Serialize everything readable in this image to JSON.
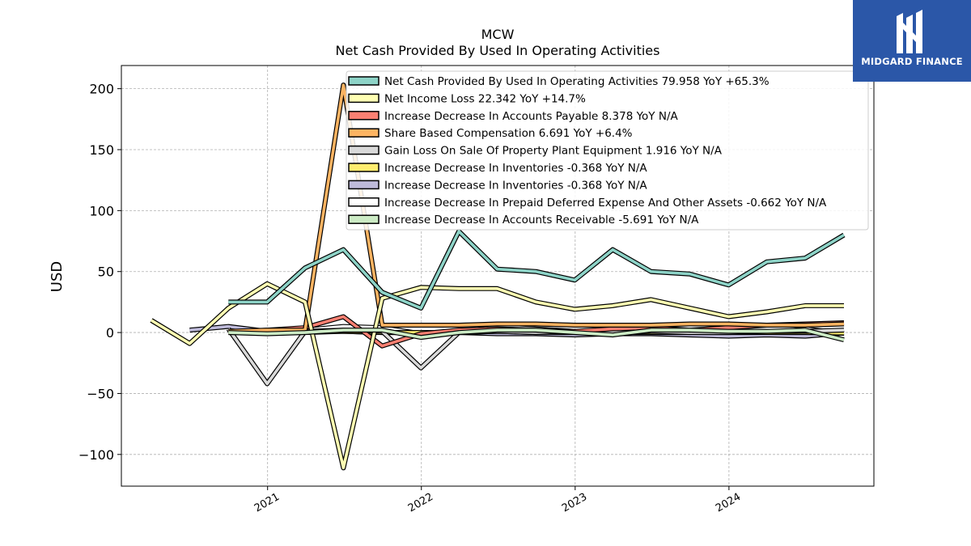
{
  "brand": {
    "name": "MIDGARD FINANCE",
    "logo_icon": "midgard-m-icon",
    "color": "#2b57a8"
  },
  "chart_data": {
    "type": "line",
    "title": "MCW",
    "subtitle": "Net Cash Provided By Used In Operating Activities",
    "xlabel": "",
    "ylabel": "USD",
    "xlim": [
      "2020-01-20",
      "2024-12-10"
    ],
    "ylim": [
      -126,
      219
    ],
    "xticks": [
      "2021",
      "2022",
      "2023",
      "2024"
    ],
    "yticks": [
      -100,
      -50,
      0,
      50,
      100,
      150,
      200
    ],
    "grid": true,
    "legend_position": "top-right",
    "series": [
      {
        "name": "Net Cash Provided By Used In Operating Activities",
        "legend": "Net Cash Provided By Used In Operating Activities  79.958 YoY +65.3%",
        "color": "#8dd3c7",
        "points": [
          [
            "2020-09-30",
            25
          ],
          [
            "2020-12-31",
            25
          ],
          [
            "2021-03-31",
            53
          ],
          [
            "2021-06-30",
            68
          ],
          [
            "2021-09-30",
            33
          ],
          [
            "2021-12-31",
            20
          ],
          [
            "2022-03-31",
            83
          ],
          [
            "2022-06-30",
            52
          ],
          [
            "2022-09-30",
            50
          ],
          [
            "2022-12-31",
            43
          ],
          [
            "2023-03-31",
            68
          ],
          [
            "2023-06-30",
            50
          ],
          [
            "2023-09-30",
            48
          ],
          [
            "2023-12-31",
            39
          ],
          [
            "2024-03-31",
            58
          ],
          [
            "2024-06-30",
            61
          ],
          [
            "2024-09-30",
            80
          ]
        ]
      },
      {
        "name": "Net Income Loss",
        "legend": "Net Income Loss  22.342 YoY +14.7%",
        "color": "#ffffb3",
        "points": [
          [
            "2020-03-31",
            10
          ],
          [
            "2020-06-30",
            -9
          ],
          [
            "2020-09-30",
            20
          ],
          [
            "2020-12-31",
            40
          ],
          [
            "2021-03-31",
            25
          ],
          [
            "2021-06-30",
            -111
          ],
          [
            "2021-09-30",
            28
          ],
          [
            "2021-12-31",
            37
          ],
          [
            "2022-03-31",
            36
          ],
          [
            "2022-06-30",
            36
          ],
          [
            "2022-09-30",
            25
          ],
          [
            "2022-12-31",
            19
          ],
          [
            "2023-03-31",
            22
          ],
          [
            "2023-06-30",
            27
          ],
          [
            "2023-09-30",
            20
          ],
          [
            "2023-12-31",
            13
          ],
          [
            "2024-03-31",
            17
          ],
          [
            "2024-06-30",
            22
          ],
          [
            "2024-09-30",
            22
          ]
        ]
      },
      {
        "name": "Increase Decrease In Accounts Payable",
        "legend": "Increase Decrease In Accounts Payable  8.378 YoY N/A",
        "color": "#fb8072",
        "points": [
          [
            "2020-09-30",
            0
          ],
          [
            "2020-12-31",
            2
          ],
          [
            "2021-03-31",
            4
          ],
          [
            "2021-06-30",
            13
          ],
          [
            "2021-09-30",
            -11
          ],
          [
            "2021-12-31",
            -1
          ],
          [
            "2022-03-31",
            2
          ],
          [
            "2022-06-30",
            3
          ],
          [
            "2022-09-30",
            2
          ],
          [
            "2022-12-31",
            1
          ],
          [
            "2023-03-31",
            3
          ],
          [
            "2023-06-30",
            4
          ],
          [
            "2023-09-30",
            2
          ],
          [
            "2023-12-31",
            4
          ],
          [
            "2024-03-31",
            6
          ],
          [
            "2024-06-30",
            7
          ],
          [
            "2024-09-30",
            8
          ]
        ]
      },
      {
        "name": "Share Based Compensation",
        "legend": "Share Based Compensation  6.691 YoY +6.4%",
        "color": "#fdb462",
        "points": [
          [
            "2020-09-30",
            1
          ],
          [
            "2020-12-31",
            2
          ],
          [
            "2021-03-31",
            2
          ],
          [
            "2021-06-30",
            203
          ],
          [
            "2021-09-30",
            6
          ],
          [
            "2021-12-31",
            6
          ],
          [
            "2022-03-31",
            6
          ],
          [
            "2022-06-30",
            7
          ],
          [
            "2022-09-30",
            7
          ],
          [
            "2022-12-31",
            6
          ],
          [
            "2023-03-31",
            6
          ],
          [
            "2023-06-30",
            6
          ],
          [
            "2023-09-30",
            7
          ],
          [
            "2023-12-31",
            7
          ],
          [
            "2024-03-31",
            6
          ],
          [
            "2024-06-30",
            6
          ],
          [
            "2024-09-30",
            7
          ]
        ]
      },
      {
        "name": "Gain Loss On Sale Of Property Plant Equipment",
        "legend": "Gain Loss On Sale Of Property Plant Equipment  1.916 YoY N/A",
        "color": "#d9d9d9",
        "points": [
          [
            "2020-09-30",
            3
          ],
          [
            "2020-12-31",
            -42
          ],
          [
            "2021-03-31",
            1
          ],
          [
            "2021-06-30",
            2
          ],
          [
            "2021-09-30",
            1
          ],
          [
            "2021-12-31",
            -29
          ],
          [
            "2022-03-31",
            0
          ],
          [
            "2022-06-30",
            1
          ],
          [
            "2022-09-30",
            0
          ],
          [
            "2022-12-31",
            1
          ],
          [
            "2023-03-31",
            0
          ],
          [
            "2023-06-30",
            1
          ],
          [
            "2023-09-30",
            0
          ],
          [
            "2023-12-31",
            0
          ],
          [
            "2024-03-31",
            1
          ],
          [
            "2024-06-30",
            1
          ],
          [
            "2024-09-30",
            2
          ]
        ]
      },
      {
        "name": "Increase Decrease In Inventories",
        "legend": "Increase Decrease In Inventories  -0.368 YoY N/A",
        "color": "#ffed6f",
        "points": [
          [
            "2020-09-30",
            1
          ],
          [
            "2020-12-31",
            0
          ],
          [
            "2021-03-31",
            0
          ],
          [
            "2021-06-30",
            1
          ],
          [
            "2021-09-30",
            0
          ],
          [
            "2021-12-31",
            0
          ],
          [
            "2022-03-31",
            0
          ],
          [
            "2022-06-30",
            1
          ],
          [
            "2022-09-30",
            0
          ],
          [
            "2022-12-31",
            0
          ],
          [
            "2023-03-31",
            0
          ],
          [
            "2023-06-30",
            0
          ],
          [
            "2023-09-30",
            0
          ],
          [
            "2023-12-31",
            0
          ],
          [
            "2024-03-31",
            0
          ],
          [
            "2024-06-30",
            0
          ],
          [
            "2024-09-30",
            -0.4
          ]
        ]
      },
      {
        "name": "Increase Decrease In Inventories",
        "legend": "Increase Decrease In Inventories  -0.368 YoY N/A",
        "color": "#bebada",
        "points": [
          [
            "2020-06-30",
            2
          ],
          [
            "2020-09-30",
            5
          ],
          [
            "2020-12-31",
            1
          ],
          [
            "2021-03-31",
            1
          ],
          [
            "2021-06-30",
            1
          ],
          [
            "2021-09-30",
            0
          ],
          [
            "2021-12-31",
            0
          ],
          [
            "2022-03-31",
            0
          ],
          [
            "2022-06-30",
            -1
          ],
          [
            "2022-09-30",
            -1
          ],
          [
            "2022-12-31",
            -2
          ],
          [
            "2023-03-31",
            -1
          ],
          [
            "2023-06-30",
            -1
          ],
          [
            "2023-09-30",
            -2
          ],
          [
            "2023-12-31",
            -3
          ],
          [
            "2024-03-31",
            -2
          ],
          [
            "2024-06-30",
            -3
          ],
          [
            "2024-09-30",
            -0.4
          ]
        ]
      },
      {
        "name": "Increase Decrease In Prepaid Deferred Expense And Other Assets",
        "legend": "Increase Decrease In Prepaid Deferred Expense And Other Assets  -0.662 YoY N/A",
        "color": "#ffffff",
        "points": [
          [
            "2020-09-30",
            1
          ],
          [
            "2020-12-31",
            0
          ],
          [
            "2021-03-31",
            2
          ],
          [
            "2021-06-30",
            5
          ],
          [
            "2021-09-30",
            4
          ],
          [
            "2021-12-31",
            -1
          ],
          [
            "2022-03-31",
            0
          ],
          [
            "2022-06-30",
            5
          ],
          [
            "2022-09-30",
            3
          ],
          [
            "2022-12-31",
            1
          ],
          [
            "2023-03-31",
            -1
          ],
          [
            "2023-06-30",
            4
          ],
          [
            "2023-09-30",
            1
          ],
          [
            "2023-12-31",
            -1
          ],
          [
            "2024-03-31",
            -1
          ],
          [
            "2024-06-30",
            3
          ],
          [
            "2024-09-30",
            -0.7
          ]
        ]
      },
      {
        "name": "Increase Decrease In Accounts Receivable",
        "legend": "Increase Decrease In Accounts Receivable  -5.691 YoY N/A",
        "color": "#ccebc5",
        "points": [
          [
            "2020-09-30",
            0
          ],
          [
            "2020-12-31",
            -1
          ],
          [
            "2021-03-31",
            0
          ],
          [
            "2021-06-30",
            2
          ],
          [
            "2021-09-30",
            2
          ],
          [
            "2021-12-31",
            -4
          ],
          [
            "2022-03-31",
            0
          ],
          [
            "2022-06-30",
            2
          ],
          [
            "2022-09-30",
            2
          ],
          [
            "2022-12-31",
            0
          ],
          [
            "2023-03-31",
            -2
          ],
          [
            "2023-06-30",
            2
          ],
          [
            "2023-09-30",
            2
          ],
          [
            "2023-12-31",
            1
          ],
          [
            "2024-03-31",
            1
          ],
          [
            "2024-06-30",
            2
          ],
          [
            "2024-09-30",
            -6
          ]
        ]
      }
    ]
  }
}
